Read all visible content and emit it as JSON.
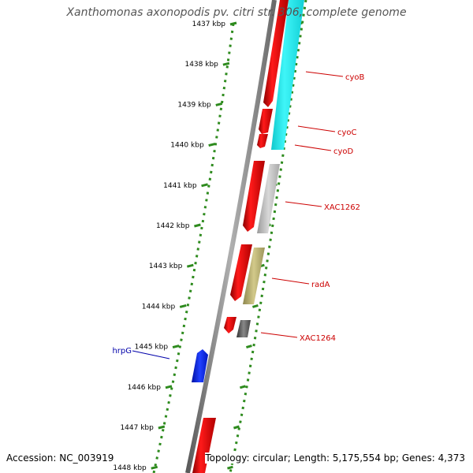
{
  "title": "Xanthomonas axonopodis pv. citri str. 306, complete genome",
  "footer": {
    "accession": "Accession: NC_003919",
    "summary": "Topology: circular; Length: 5,175,554 bp; Genes: 4,373"
  },
  "colors": {
    "background": "#ffffff",
    "backbone": "#888888",
    "ruler_dots": "#2e8b1e",
    "gene_forward": "#e01010",
    "label_red": "#cc0000",
    "label_blue": "#0000aa",
    "gene_blue": "#0022dd",
    "cyo_operon": "#19e3e8",
    "xac1262_feature": "#b7b7b7",
    "rada_feature": "#aaa368",
    "xac1264_feature": "#555555"
  },
  "ruler": {
    "unit": "kbp",
    "ticks": [
      {
        "kbp": 1437,
        "label": "1437 kbp"
      },
      {
        "kbp": 1438,
        "label": "1438 kbp"
      },
      {
        "kbp": 1439,
        "label": "1439 kbp"
      },
      {
        "kbp": 1440,
        "label": "1440 kbp"
      },
      {
        "kbp": 1441,
        "label": "1441 kbp"
      },
      {
        "kbp": 1442,
        "label": "1442 kbp"
      },
      {
        "kbp": 1443,
        "label": "1443 kbp"
      },
      {
        "kbp": 1444,
        "label": "1444 kbp"
      },
      {
        "kbp": 1445,
        "label": "1445 kbp"
      },
      {
        "kbp": 1446,
        "label": "1446 kbp"
      },
      {
        "kbp": 1447,
        "label": "1447 kbp"
      },
      {
        "kbp": 1448,
        "label": "1448 kbp"
      }
    ]
  },
  "genes": [
    {
      "name": "cyoB",
      "strand": "forward"
    },
    {
      "name": "cyoC",
      "strand": "forward"
    },
    {
      "name": "cyoD",
      "strand": "forward"
    },
    {
      "name": "XAC1262",
      "strand": "forward"
    },
    {
      "name": "radA",
      "strand": "forward"
    },
    {
      "name": "XAC1264",
      "strand": "forward"
    },
    {
      "name": "hrpG",
      "strand": "reverse"
    }
  ]
}
